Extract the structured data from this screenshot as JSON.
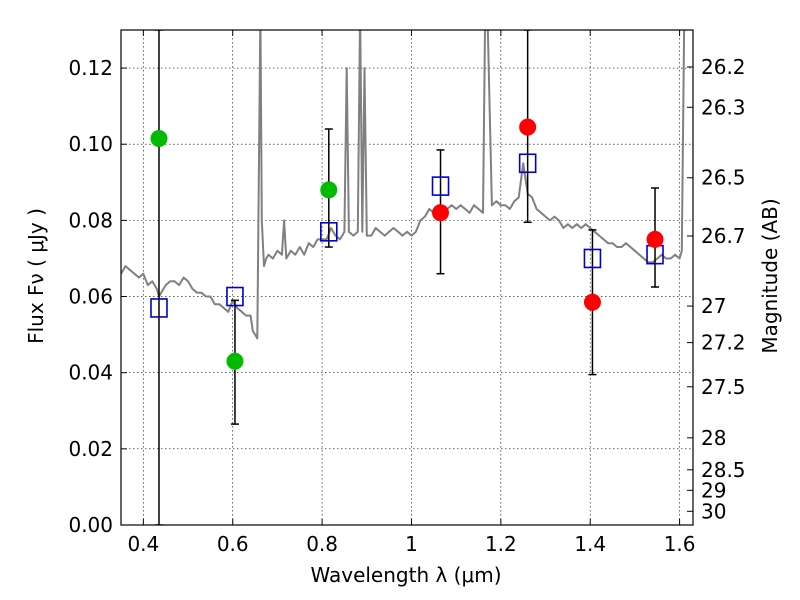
{
  "chart_data": {
    "type": "scatter",
    "title": "",
    "xlabel": "Wavelength  λ (μm)",
    "ylabel": "Flux  Fν  ( μJy )",
    "y2label": "Magnitude (AB)",
    "xlim": [
      0.35,
      1.63
    ],
    "ylim": [
      0.0,
      0.13
    ],
    "grid": true,
    "x_ticks": [
      "0.4",
      "0.6",
      "0.8",
      "1",
      "1.2",
      "1.4",
      "1.6"
    ],
    "x_tick_values": [
      0.4,
      0.6,
      0.8,
      1.0,
      1.2,
      1.4,
      1.6
    ],
    "y_ticks": [
      "0.00",
      "0.02",
      "0.04",
      "0.06",
      "0.08",
      "0.10",
      "0.12"
    ],
    "y_tick_values": [
      0.0,
      0.02,
      0.04,
      0.06,
      0.08,
      0.1,
      0.12
    ],
    "y2_ticks": [
      {
        "label": "26.2",
        "flux": 0.1203
      },
      {
        "label": "26.3",
        "flux": 0.1097
      },
      {
        "label": "26.5",
        "flux": 0.0912
      },
      {
        "label": "26.7",
        "flux": 0.0759
      },
      {
        "label": "27",
        "flux": 0.0575
      },
      {
        "label": "27.2",
        "flux": 0.0479
      },
      {
        "label": "27.5",
        "flux": 0.0363
      },
      {
        "label": "28",
        "flux": 0.0229
      },
      {
        "label": "28.5",
        "flux": 0.0145
      },
      {
        "label": "29",
        "flux": 0.0091
      },
      {
        "label": "30",
        "flux": 0.0036
      }
    ],
    "series": [
      {
        "kind": "spectrum",
        "color": "#808080",
        "x": [
          0.35,
          0.36,
          0.37,
          0.38,
          0.39,
          0.4,
          0.41,
          0.42,
          0.43,
          0.435,
          0.44,
          0.45,
          0.46,
          0.47,
          0.48,
          0.49,
          0.5,
          0.51,
          0.52,
          0.53,
          0.54,
          0.55,
          0.56,
          0.57,
          0.58,
          0.59,
          0.6,
          0.61,
          0.62,
          0.63,
          0.64,
          0.645,
          0.65,
          0.655,
          0.66,
          0.662,
          0.665,
          0.67,
          0.675,
          0.68,
          0.69,
          0.7,
          0.71,
          0.715,
          0.72,
          0.73,
          0.74,
          0.75,
          0.76,
          0.77,
          0.78,
          0.79,
          0.8,
          0.81,
          0.82,
          0.83,
          0.84,
          0.85,
          0.855,
          0.86,
          0.87,
          0.88,
          0.885,
          0.89,
          0.895,
          0.9,
          0.91,
          0.92,
          0.93,
          0.94,
          0.95,
          0.96,
          0.97,
          0.98,
          0.99,
          1.0,
          1.01,
          1.02,
          1.03,
          1.04,
          1.05,
          1.06,
          1.07,
          1.08,
          1.09,
          1.1,
          1.11,
          1.12,
          1.13,
          1.14,
          1.15,
          1.16,
          1.165,
          1.17,
          1.18,
          1.19,
          1.2,
          1.21,
          1.22,
          1.23,
          1.24,
          1.25,
          1.26,
          1.27,
          1.28,
          1.29,
          1.3,
          1.31,
          1.32,
          1.33,
          1.34,
          1.35,
          1.36,
          1.37,
          1.38,
          1.39,
          1.4,
          1.41,
          1.42,
          1.43,
          1.44,
          1.45,
          1.46,
          1.47,
          1.48,
          1.49,
          1.5,
          1.51,
          1.52,
          1.53,
          1.54,
          1.55,
          1.56,
          1.57,
          1.58,
          1.59,
          1.6,
          1.605,
          1.61,
          1.615,
          1.62,
          1.625
        ],
        "y": [
          0.066,
          0.068,
          0.067,
          0.066,
          0.065,
          0.066,
          0.063,
          0.064,
          0.062,
          0.06,
          0.061,
          0.063,
          0.064,
          0.064,
          0.063,
          0.065,
          0.064,
          0.062,
          0.061,
          0.061,
          0.06,
          0.06,
          0.058,
          0.058,
          0.057,
          0.056,
          0.059,
          0.057,
          0.056,
          0.055,
          0.055,
          0.051,
          0.05,
          0.049,
          0.11,
          0.135,
          0.08,
          0.068,
          0.07,
          0.071,
          0.07,
          0.072,
          0.071,
          0.08,
          0.07,
          0.072,
          0.071,
          0.073,
          0.071,
          0.074,
          0.073,
          0.075,
          0.075,
          0.075,
          0.078,
          0.076,
          0.075,
          0.077,
          0.12,
          0.077,
          0.076,
          0.077,
          0.135,
          0.077,
          0.12,
          0.076,
          0.076,
          0.078,
          0.077,
          0.076,
          0.077,
          0.078,
          0.077,
          0.076,
          0.077,
          0.076,
          0.077,
          0.08,
          0.081,
          0.083,
          0.082,
          0.084,
          0.082,
          0.083,
          0.084,
          0.083,
          0.084,
          0.083,
          0.082,
          0.084,
          0.083,
          0.082,
          0.135,
          0.135,
          0.084,
          0.085,
          0.084,
          0.084,
          0.083,
          0.085,
          0.086,
          0.095,
          0.087,
          0.086,
          0.083,
          0.082,
          0.081,
          0.08,
          0.081,
          0.08,
          0.078,
          0.079,
          0.078,
          0.079,
          0.078,
          0.079,
          0.078,
          0.077,
          0.076,
          0.075,
          0.074,
          0.074,
          0.073,
          0.073,
          0.074,
          0.073,
          0.072,
          0.071,
          0.07,
          0.069,
          0.069,
          0.07,
          0.071,
          0.07,
          0.07,
          0.071,
          0.07,
          0.072,
          0.13,
          0.135,
          0.132,
          0.134
        ]
      },
      {
        "kind": "model-photometry",
        "marker": "open-square",
        "color": "#0000cc",
        "x": [
          0.435,
          0.605,
          0.815,
          1.065,
          1.26,
          1.405,
          1.545
        ],
        "y": [
          0.057,
          0.06,
          0.077,
          0.089,
          0.095,
          0.07,
          0.071
        ]
      },
      {
        "kind": "observed",
        "marker": "filled-circle",
        "color": "#00bb00",
        "x": [
          0.435,
          0.605,
          0.815
        ],
        "y": [
          0.1015,
          0.043,
          0.088
        ],
        "yerr_low": [
          0.1015,
          0.0165,
          0.015
        ],
        "yerr_high": [
          0.0285,
          0.016,
          0.016
        ]
      },
      {
        "kind": "observed",
        "marker": "filled-circle",
        "color": "#ff0000",
        "x": [
          1.065,
          1.26,
          1.405,
          1.545
        ],
        "y": [
          0.082,
          0.1045,
          0.0585,
          0.075
        ],
        "yerr_low": [
          0.016,
          0.025,
          0.019,
          0.0125
        ],
        "yerr_high": [
          0.0165,
          0.0255,
          0.019,
          0.0135
        ]
      }
    ]
  }
}
